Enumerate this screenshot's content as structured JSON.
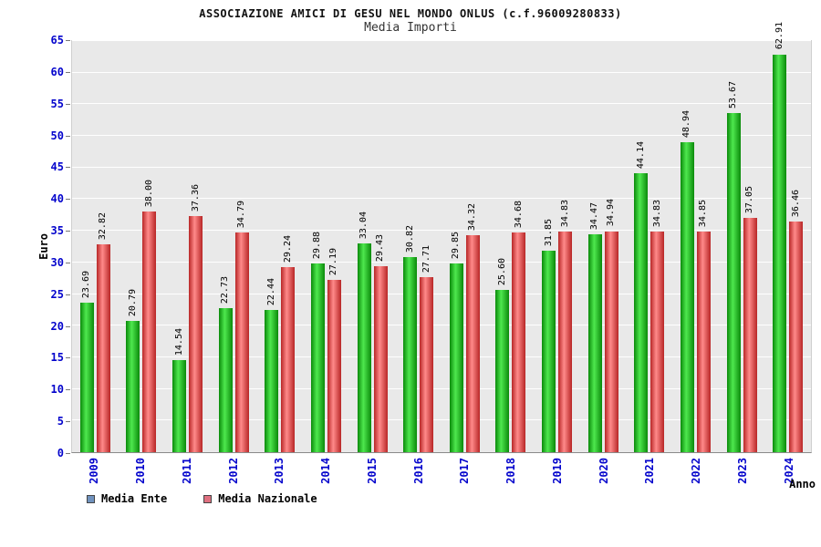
{
  "header": {
    "title": "ASSOCIAZIONE AMICI DI GESU NEL MONDO ONLUS (c.f.96009280833)",
    "subtitle": "Media Importi"
  },
  "colors": {
    "axis_label_blue": "#0404cc",
    "plot_background": "#e9e9e9",
    "gridline": "#ffffff",
    "value_label": "#000000"
  },
  "chart_data": {
    "type": "bar",
    "title": "ASSOCIAZIONE AMICI DI GESU NEL MONDO ONLUS (c.f.96009280833)",
    "subtitle": "Media Importi",
    "xlabel": "Anno",
    "ylabel": "Euro",
    "ylim": [
      0,
      65
    ],
    "yticks": [
      0,
      5,
      10,
      15,
      20,
      25,
      30,
      35,
      40,
      45,
      50,
      55,
      60,
      65
    ],
    "grid": true,
    "legend_position": "bottom-left",
    "categories": [
      "2009",
      "2010",
      "2011",
      "2012",
      "2013",
      "2014",
      "2015",
      "2016",
      "2017",
      "2018",
      "2019",
      "2020",
      "2021",
      "2022",
      "2023",
      "2024"
    ],
    "series": [
      {
        "name": "Media Ente",
        "legend_color": "#7092be",
        "bar_gradient": [
          "#0a8a0a",
          "#4ee84e"
        ],
        "values": [
          23.69,
          20.79,
          14.54,
          22.73,
          22.44,
          29.88,
          33.04,
          30.82,
          29.85,
          25.6,
          31.85,
          34.47,
          44.14,
          48.94,
          53.67,
          62.91
        ]
      },
      {
        "name": "Media Nazionale",
        "legend_color": "#df7080",
        "bar_gradient": [
          "#b82626",
          "#ff8a8a"
        ],
        "values": [
          32.82,
          38.0,
          37.36,
          34.79,
          29.24,
          27.19,
          29.43,
          27.71,
          34.32,
          34.68,
          34.83,
          34.94,
          34.83,
          34.85,
          37.05,
          36.46
        ]
      }
    ]
  }
}
